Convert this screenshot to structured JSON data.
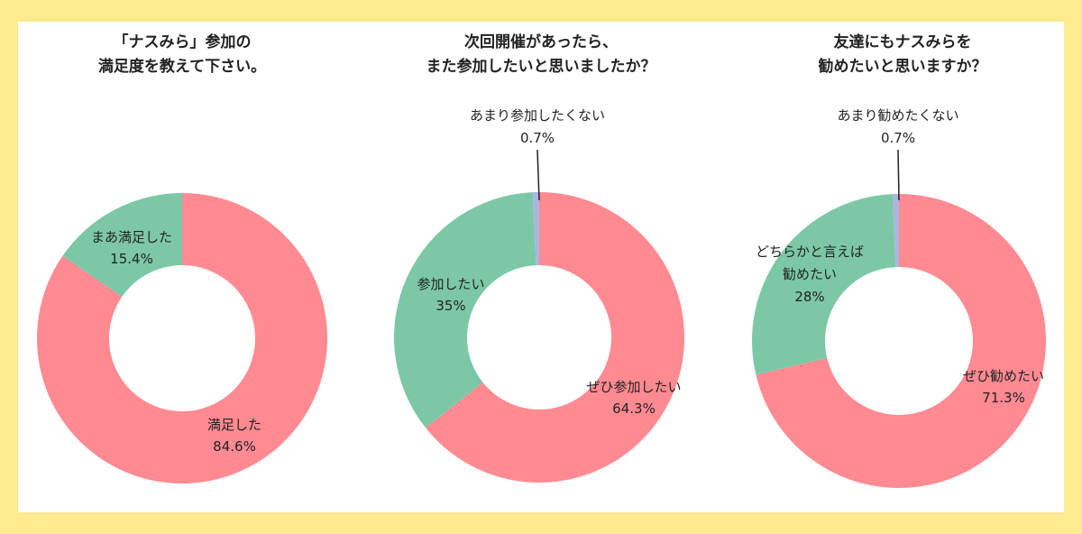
{
  "colors": {
    "background": "#FFEB8F",
    "panel": "#FFFFFF",
    "pink": "#FF8A92",
    "green": "#7CC8A6",
    "lavender": "#A9B6E2",
    "text": "#222222"
  },
  "chart_data": [
    {
      "type": "pie",
      "donut": true,
      "title_lines": [
        "「ナスみら」参加の",
        "満足度を教えて下さい。"
      ],
      "slices": [
        {
          "label_lines": [
            "満足した"
          ],
          "value": 84.6,
          "value_text": "84.6%",
          "color": "pink"
        },
        {
          "label_lines": [
            "まあ満足した"
          ],
          "value": 15.4,
          "value_text": "15.4%",
          "color": "green"
        }
      ]
    },
    {
      "type": "pie",
      "donut": true,
      "title_lines": [
        "次回開催があったら、",
        "また参加したいと思いましたか？"
      ],
      "slices": [
        {
          "label_lines": [
            "ぜひ参加したい"
          ],
          "value": 64.3,
          "value_text": "64.3%",
          "color": "pink"
        },
        {
          "label_lines": [
            "参加したい"
          ],
          "value": 35,
          "value_text": "35%",
          "color": "green"
        },
        {
          "label_lines": [
            "あまり参加したくない"
          ],
          "value": 0.7,
          "value_text": "0.7%",
          "color": "lavender"
        }
      ]
    },
    {
      "type": "pie",
      "donut": true,
      "title_lines": [
        "友達にもナスみらを",
        "勧めたいと思いますか？"
      ],
      "slices": [
        {
          "label_lines": [
            "ぜひ勧めたい"
          ],
          "value": 71.3,
          "value_text": "71.3%",
          "color": "pink"
        },
        {
          "label_lines": [
            "どちらかと言えば",
            "勧めたい"
          ],
          "value": 28,
          "value_text": "28%",
          "color": "green"
        },
        {
          "label_lines": [
            "あまり勧めたくない"
          ],
          "value": 0.7,
          "value_text": "0.7%",
          "color": "lavender"
        }
      ]
    }
  ]
}
